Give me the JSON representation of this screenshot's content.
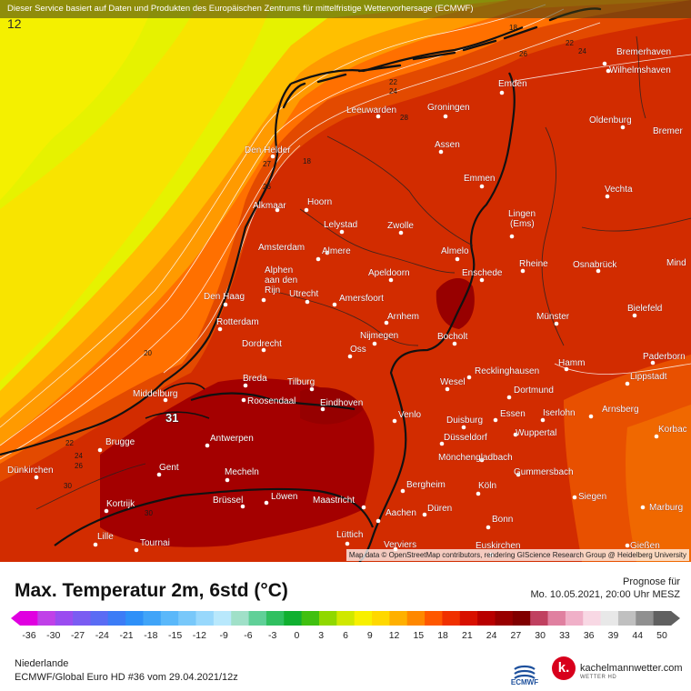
{
  "banner": "Dieser Service basiert auf Daten und Produkten des Europäischen Zentrums für mittelfristige Wettervorhersage (ECMWF)",
  "corner_value": "12",
  "attribution": "Map data © OpenStreetMap contributors, rendering GIScience Research Group @ Heidelberg University",
  "colors": {
    "yellow": "#e8f000",
    "orange": "#ff8c00",
    "red": "#d42a00",
    "darkred": "#a80000",
    "maroon": "#8c0000"
  },
  "cities": [
    {
      "name": "Bremerhaven"
    },
    {
      "name": "Wilhelmshaven"
    },
    {
      "name": "Emden"
    },
    {
      "name": "Oldenburg"
    },
    {
      "name": "Bremer"
    },
    {
      "name": "Leeuwarden"
    },
    {
      "name": "Groningen"
    },
    {
      "name": "Assen"
    },
    {
      "name": "Emmen"
    },
    {
      "name": "Den Helder"
    },
    {
      "name": "Vechta"
    },
    {
      "name": "Alkmaar"
    },
    {
      "name": "Hoorn"
    },
    {
      "name": "Lingen"
    },
    {
      "name": "(Ems)"
    },
    {
      "name": "Lelystad"
    },
    {
      "name": "Zwolle"
    },
    {
      "name": "Amsterdam"
    },
    {
      "name": "Almere"
    },
    {
      "name": "Almelo"
    },
    {
      "name": "Rheine"
    },
    {
      "name": "Osnabrück"
    },
    {
      "name": "Mind"
    },
    {
      "name": "Alphen"
    },
    {
      "name": "aan den"
    },
    {
      "name": "Rijn"
    },
    {
      "name": "Apeldoorn"
    },
    {
      "name": "Enschede"
    },
    {
      "name": "Den Haag"
    },
    {
      "name": "Utrecht"
    },
    {
      "name": "Amersfoort"
    },
    {
      "name": "Bielefeld"
    },
    {
      "name": "Rotterdam"
    },
    {
      "name": "Arnhem"
    },
    {
      "name": "Münster"
    },
    {
      "name": "Dordrecht"
    },
    {
      "name": "Nijmegen"
    },
    {
      "name": "Bocholt"
    },
    {
      "name": "Oss"
    },
    {
      "name": "Paderborn"
    },
    {
      "name": "Hamm"
    },
    {
      "name": "Breda"
    },
    {
      "name": "Tilburg"
    },
    {
      "name": "Recklinghausen"
    },
    {
      "name": "Lippstadt"
    },
    {
      "name": "Middelburg"
    },
    {
      "name": "Wesel"
    },
    {
      "name": "Roosendaal"
    },
    {
      "name": "Dortmund"
    },
    {
      "name": "Eindhoven"
    },
    {
      "name": "Iserlohn"
    },
    {
      "name": "Arnsberg"
    },
    {
      "name": "Venlo"
    },
    {
      "name": "Duisburg"
    },
    {
      "name": "Essen"
    },
    {
      "name": "Korbac"
    },
    {
      "name": "Wuppertal"
    },
    {
      "name": "Antwerpen"
    },
    {
      "name": "Brugge"
    },
    {
      "name": "Düsseldorf"
    },
    {
      "name": "Mönchengladbach"
    },
    {
      "name": "Dünkirchen"
    },
    {
      "name": "Gent"
    },
    {
      "name": "Mecheln"
    },
    {
      "name": "Gummersbach"
    },
    {
      "name": "Bergheim"
    },
    {
      "name": "Köln"
    },
    {
      "name": "Kortrijk"
    },
    {
      "name": "Brüssel"
    },
    {
      "name": "Löwen"
    },
    {
      "name": "Maastricht"
    },
    {
      "name": "Siegen"
    },
    {
      "name": "Düren"
    },
    {
      "name": "Aachen"
    },
    {
      "name": "Marburg"
    },
    {
      "name": "Bonn"
    },
    {
      "name": "Lille"
    },
    {
      "name": "Lüttich"
    },
    {
      "name": "Tournai"
    },
    {
      "name": "Verviers"
    },
    {
      "name": "Euskirchen"
    },
    {
      "name": "Gießen"
    }
  ],
  "isolines": [
    "18",
    "22",
    "24",
    "22",
    "24",
    "26",
    "28",
    "27",
    "18",
    "26",
    "20",
    "22",
    "24",
    "26",
    "30",
    "30",
    "20",
    "31"
  ],
  "footer": {
    "title": "Max. Temperatur 2m, 6std (°C)",
    "prognose_label": "Prognose für",
    "prognose_date": "Mo. 10.05.2021, 20:00 Uhr MESZ",
    "region": "Niederlande",
    "model": "ECMWF/Global Euro HD #36 vom  29.04.2021/12z",
    "ecmwf": "ECMWF",
    "brand": "kachelmannwetter.com",
    "brand_sub": "WETTER HD",
    "brand_k": "k."
  },
  "scale": {
    "labels": [
      "-36",
      "-30",
      "-27",
      "-24",
      "-21",
      "-18",
      "-15",
      "-12",
      "-9",
      "-6",
      "-3",
      "0",
      "3",
      "6",
      "9",
      "12",
      "15",
      "18",
      "21",
      "24",
      "27",
      "30",
      "33",
      "36",
      "39",
      "44",
      "50"
    ],
    "colors": [
      "#e000e0",
      "#c040e8",
      "#9a4cf0",
      "#7a5cf2",
      "#5a6cf4",
      "#3c7cf6",
      "#2e90f8",
      "#40a4f8",
      "#5ab8fa",
      "#78c8fa",
      "#98d8fc",
      "#b8e8fc",
      "#a0e0c8",
      "#60d098",
      "#30c060",
      "#10b030",
      "#40c010",
      "#90d800",
      "#d0e800",
      "#f8f000",
      "#ffd800",
      "#ffb000",
      "#ff8800",
      "#ff5800",
      "#f03000",
      "#d81000",
      "#b80000",
      "#980000",
      "#800000",
      "#c04060",
      "#e080a0",
      "#f0b0c8",
      "#f8d8e4",
      "#e8e8e8",
      "#c0c0c0",
      "#909090",
      "#606060"
    ]
  }
}
